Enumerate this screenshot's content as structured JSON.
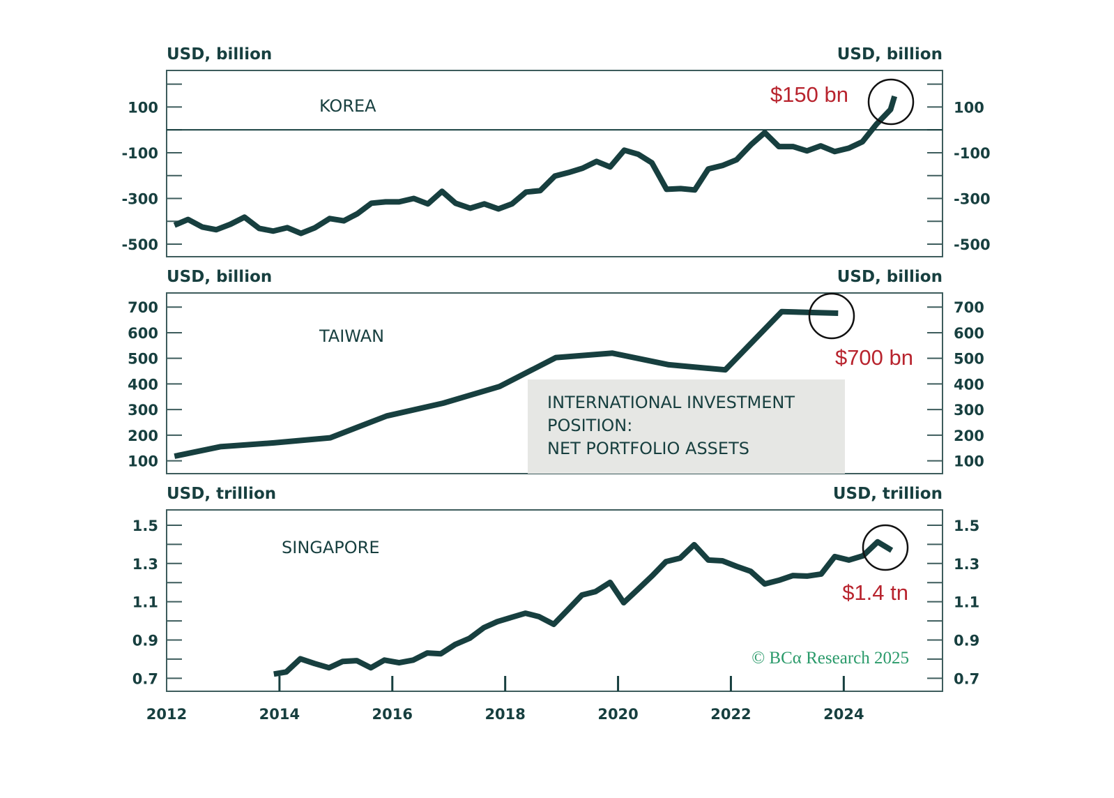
{
  "chart_data": {
    "type": "line",
    "title_box": [
      "INTERNATIONAL INVESTMENT",
      "POSITION:",
      "NET PORTFOLIO ASSETS"
    ],
    "credit": "© BCα Research 2025",
    "x_axis": {
      "range": [
        2012,
        2025.75
      ],
      "ticks": [
        2012,
        2014,
        2016,
        2018,
        2020,
        2022,
        2024
      ],
      "tick_labels": [
        "2012",
        "2014",
        "2016",
        "2018",
        "2020",
        "2022",
        "2024"
      ]
    },
    "panels": [
      {
        "id": "korea",
        "label": "KOREA",
        "unit_left": "USD, billion",
        "unit_right": "USD, billion",
        "ylim": [
          -555,
          260
        ],
        "minor_ticks": [
          200,
          100,
          0,
          -100,
          -200,
          -300,
          -400,
          -500
        ],
        "tick_values": [
          100,
          -100,
          -300,
          -500
        ],
        "tick_labels": [
          "100",
          "-100",
          "-300",
          "-500"
        ],
        "zero_line": 0,
        "annotation": {
          "text": "$150 bn",
          "x": 2024.9,
          "y": 147
        },
        "series": {
          "name": "Korea net portfolio assets",
          "x": [
            2012.14,
            2012.38,
            2012.63,
            2012.88,
            2013.13,
            2013.38,
            2013.64,
            2013.89,
            2014.14,
            2014.38,
            2014.63,
            2014.89,
            2015.14,
            2015.38,
            2015.63,
            2015.88,
            2016.12,
            2016.38,
            2016.63,
            2016.88,
            2017.12,
            2017.38,
            2017.63,
            2017.88,
            2018.12,
            2018.37,
            2018.62,
            2018.88,
            2019.12,
            2019.37,
            2019.62,
            2019.86,
            2020.11,
            2020.36,
            2020.6,
            2020.86,
            2021.11,
            2021.36,
            2021.6,
            2021.85,
            2022.1,
            2022.36,
            2022.6,
            2022.85,
            2023.1,
            2023.35,
            2023.59,
            2023.84,
            2024.09,
            2024.33,
            2024.58,
            2024.83,
            2024.9
          ],
          "y": [
            -417,
            -392,
            -425,
            -437,
            -413,
            -382,
            -431,
            -443,
            -428,
            -453,
            -428,
            -388,
            -398,
            -367,
            -321,
            -315,
            -315,
            -300,
            -324,
            -269,
            -321,
            -343,
            -324,
            -346,
            -324,
            -272,
            -266,
            -202,
            -187,
            -168,
            -138,
            -162,
            -89,
            -107,
            -144,
            -260,
            -257,
            -263,
            -171,
            -156,
            -131,
            -64,
            -12,
            -73,
            -73,
            -92,
            -70,
            -95,
            -80,
            -52,
            25,
            89,
            147
          ]
        }
      },
      {
        "id": "taiwan",
        "label": "TAIWAN",
        "unit_left": "USD, billion",
        "unit_right": "USD, billion",
        "ylim": [
          50,
          755
        ],
        "tick_values": [
          700,
          600,
          500,
          400,
          300,
          200,
          100
        ],
        "tick_labels": [
          "700",
          "600",
          "500",
          "400",
          "300",
          "200",
          "100"
        ],
        "annotation": {
          "text": "$700 bn",
          "x": 2023.9,
          "y": 675
        },
        "series": {
          "name": "Taiwan net portfolio assets",
          "x": [
            2012.14,
            2012.95,
            2013.9,
            2014.9,
            2015.9,
            2016.9,
            2017.9,
            2018.9,
            2019.9,
            2020.9,
            2021.9,
            2022.9,
            2023.9
          ],
          "y": [
            118,
            155,
            170,
            190,
            275,
            325,
            390,
            503,
            520,
            475,
            455,
            682,
            676
          ]
        }
      },
      {
        "id": "singapore",
        "label": "SINGAPORE",
        "unit_left": "USD, trillion",
        "unit_right": "USD, trillion",
        "ylim": [
          0.632,
          1.58
        ],
        "minor_ticks": [
          1.5,
          1.4,
          1.3,
          1.2,
          1.1,
          1.0,
          0.9,
          0.8,
          0.7
        ],
        "tick_values": [
          1.5,
          1.3,
          1.1,
          0.9,
          0.7
        ],
        "tick_labels": [
          "1.5",
          "1.3",
          "1.1",
          "0.9",
          "0.7"
        ],
        "annotation": {
          "text": "$1.4 tn",
          "x": 2024.75,
          "y": 1.385
        },
        "series": {
          "name": "Singapore net portfolio assets",
          "x": [
            2013.9,
            2014.12,
            2014.37,
            2014.62,
            2014.88,
            2015.12,
            2015.37,
            2015.62,
            2015.86,
            2016.12,
            2016.37,
            2016.62,
            2016.86,
            2017.11,
            2017.37,
            2017.62,
            2017.86,
            2018.11,
            2018.36,
            2018.6,
            2018.86,
            2019.11,
            2019.36,
            2019.6,
            2019.86,
            2020.1,
            2020.35,
            2020.6,
            2020.85,
            2021.1,
            2021.35,
            2021.6,
            2021.85,
            2022.1,
            2022.35,
            2022.6,
            2022.85,
            2023.1,
            2023.35,
            2023.6,
            2023.84,
            2024.09,
            2024.34,
            2024.6,
            2024.85
          ],
          "y": [
            0.722,
            0.733,
            0.802,
            0.777,
            0.755,
            0.788,
            0.792,
            0.755,
            0.795,
            0.781,
            0.795,
            0.832,
            0.828,
            0.876,
            0.909,
            0.964,
            0.996,
            1.018,
            1.04,
            1.022,
            0.982,
            1.058,
            1.135,
            1.153,
            1.201,
            1.095,
            1.164,
            1.234,
            1.31,
            1.328,
            1.398,
            1.318,
            1.314,
            1.285,
            1.259,
            1.193,
            1.212,
            1.237,
            1.234,
            1.245,
            1.336,
            1.318,
            1.34,
            1.413,
            1.369
          ]
        }
      }
    ]
  }
}
